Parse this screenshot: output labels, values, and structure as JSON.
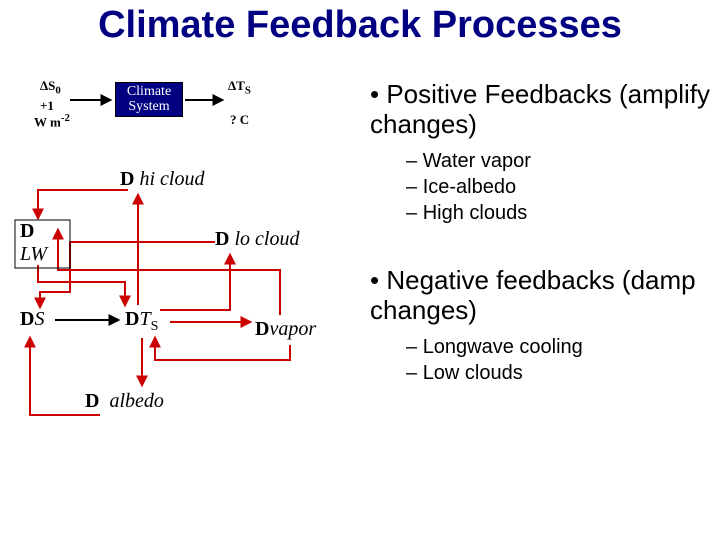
{
  "title": "Climate Feedback Processes",
  "bullets": {
    "positive": {
      "heading": "Positive Feedbacks (amplify changes)",
      "items": [
        "Water vapor",
        "Ice-albedo",
        "High clouds"
      ]
    },
    "negative": {
      "heading": "Negative feedbacks (damp changes)",
      "items": [
        "Longwave cooling",
        "Low clouds"
      ]
    }
  },
  "topDiagram": {
    "dS0": "ΔS",
    "dS0_sub": "0",
    "plus1": "+1",
    "wm2": "W m",
    "wm2_sup": "-2",
    "box": "Climate\nSystem",
    "dTs": "ΔT",
    "dTs_sub": "S",
    "qC": "? C"
  },
  "nodes": {
    "hiCloud": {
      "label": "hi cloud"
    },
    "loCloud": {
      "label": "lo cloud"
    },
    "LW": {
      "label": "LW"
    },
    "S": {
      "label": "S"
    },
    "TS": {
      "label": "T",
      "sub": "S"
    },
    "vapor": {
      "label": "vapor"
    },
    "albedo": {
      "label": "albedo"
    }
  },
  "delta": "D",
  "colors": {
    "title": "#000080",
    "arrowBlack": "#000000",
    "arrowRed": "#cc0000",
    "boxBg": "#000080",
    "boxText": "#ffffff"
  },
  "arrowStyle": {
    "width": 2
  }
}
